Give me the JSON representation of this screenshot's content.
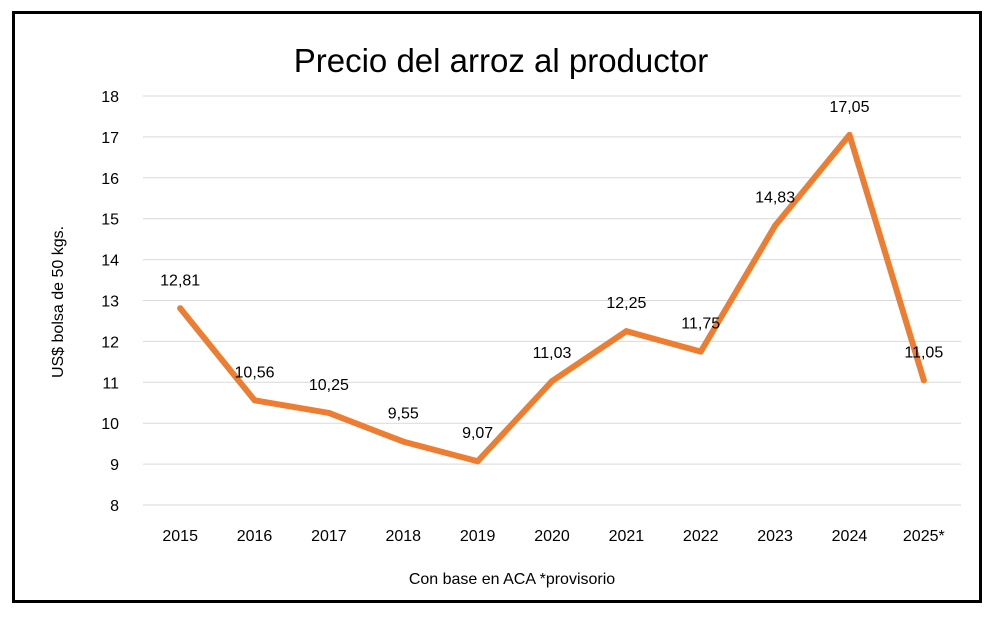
{
  "chart_data": {
    "type": "line",
    "title": "Precio del arroz al productor",
    "xlabel": "Con base en ACA *provisorio",
    "ylabel": "US$ bolsa de 50 kgs.",
    "categories": [
      "2015",
      "2016",
      "2017",
      "2018",
      "2019",
      "2020",
      "2021",
      "2022",
      "2023",
      "2024",
      "2025*"
    ],
    "series": [
      {
        "values": [
          12.81,
          10.56,
          10.25,
          9.55,
          9.07,
          11.03,
          12.25,
          11.75,
          14.83,
          17.05,
          11.05
        ],
        "labels": [
          "12,81",
          "10,56",
          "10,25",
          "9,55",
          "9,07",
          "11,03",
          "12,25",
          "11,75",
          "14,83",
          "17,05",
          "11,05"
        ],
        "color": "#ed7d31"
      }
    ],
    "ylim": [
      8,
      18
    ],
    "yticks": [
      "8",
      "9",
      "10",
      "11",
      "12",
      "13",
      "14",
      "15",
      "16",
      "17",
      "18"
    ],
    "grid": true,
    "legend": "none"
  }
}
